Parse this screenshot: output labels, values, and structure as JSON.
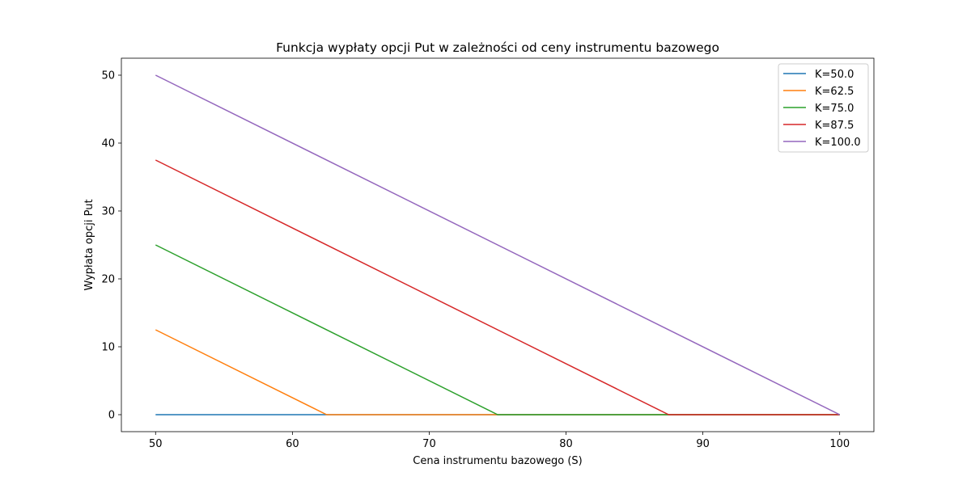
{
  "chart_data": {
    "type": "line",
    "title": "Funkcja wypłaty opcji Put w zależności od ceny instrumentu bazowego",
    "xlabel": "Cena instrumentu bazowego (S)",
    "ylabel": "Wypłata opcji Put",
    "xlim": [
      47.5,
      102.5
    ],
    "ylim": [
      -2.5,
      52.5
    ],
    "x_ticks": [
      50,
      60,
      70,
      80,
      90,
      100
    ],
    "y_ticks": [
      0,
      10,
      20,
      30,
      40,
      50
    ],
    "grid": false,
    "legend_position": "top-right",
    "series": [
      {
        "name": "K=50.0",
        "color": "#1f77b4",
        "points": [
          [
            50,
            0
          ],
          [
            100,
            0
          ]
        ]
      },
      {
        "name": "K=62.5",
        "color": "#ff7f0e",
        "points": [
          [
            50,
            12.5
          ],
          [
            62.5,
            0
          ],
          [
            100,
            0
          ]
        ]
      },
      {
        "name": "K=75.0",
        "color": "#2ca02c",
        "points": [
          [
            50,
            25
          ],
          [
            75,
            0
          ],
          [
            100,
            0
          ]
        ]
      },
      {
        "name": "K=87.5",
        "color": "#d62728",
        "points": [
          [
            50,
            37.5
          ],
          [
            87.5,
            0
          ],
          [
            100,
            0
          ]
        ]
      },
      {
        "name": "K=100.0",
        "color": "#9467bd",
        "points": [
          [
            50,
            50
          ],
          [
            100,
            0
          ]
        ]
      }
    ]
  }
}
